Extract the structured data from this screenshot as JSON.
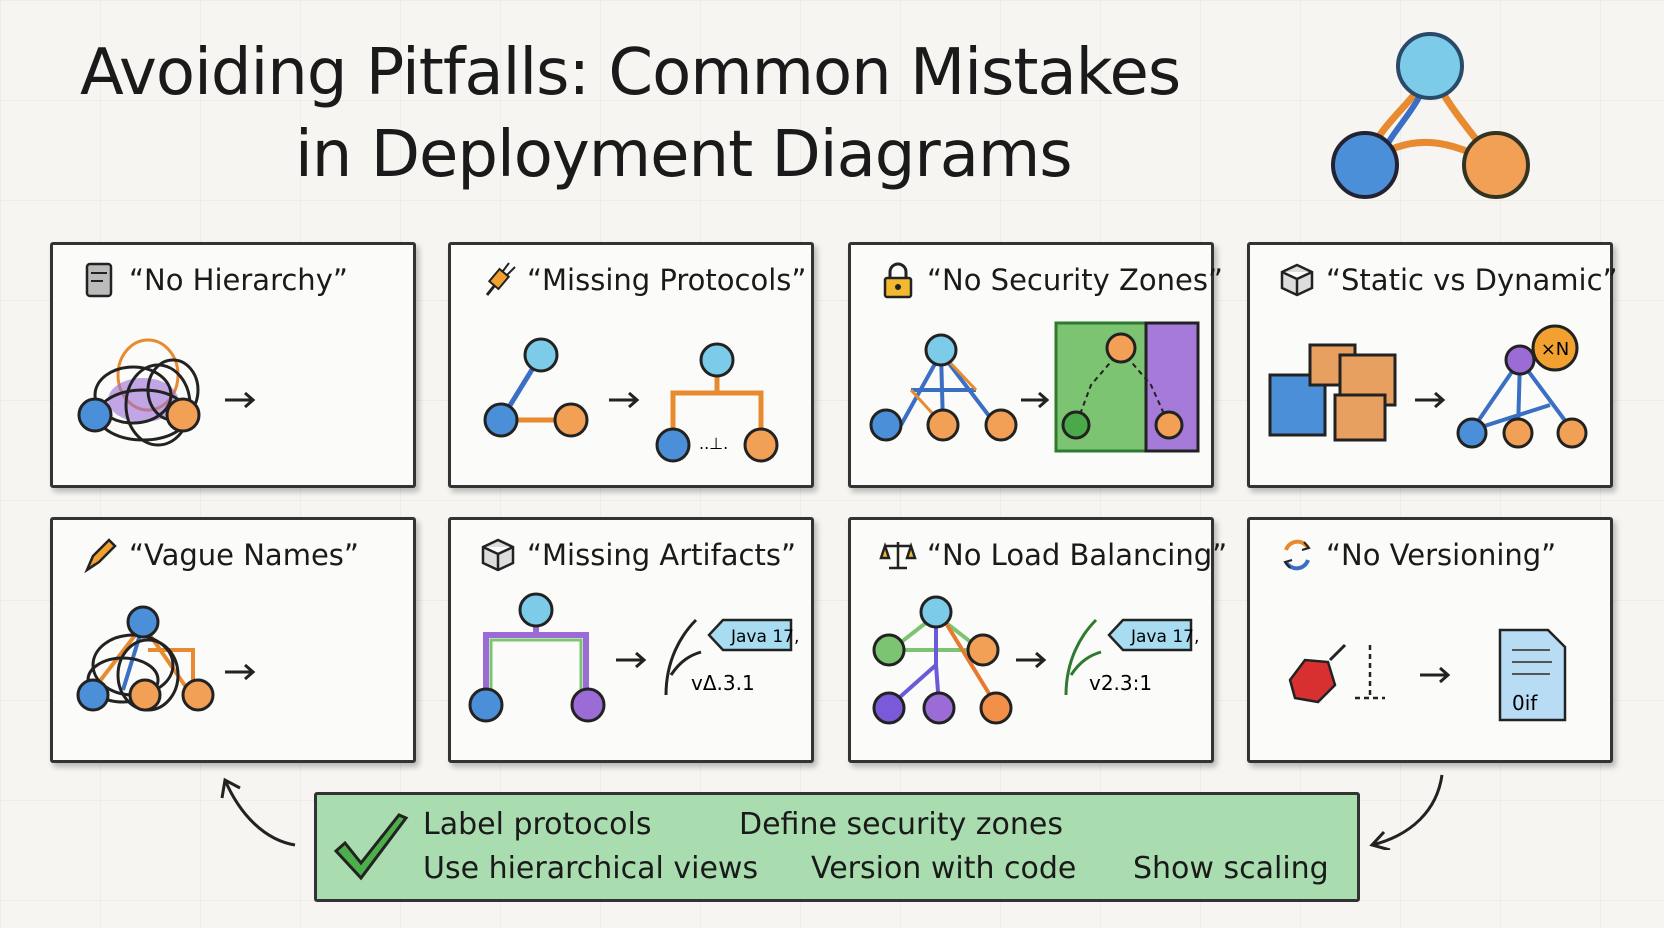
{
  "title": {
    "line1": "Avoiding Pitfalls: Common Mistakes",
    "line2": "in Deployment Diagrams"
  },
  "cards": [
    {
      "label": "“No Hierarchy”",
      "icon": "server-icon"
    },
    {
      "label": "“Missing Protocols”",
      "icon": "plug-icon"
    },
    {
      "label": "“No Security Zones”",
      "icon": "lock-icon"
    },
    {
      "label": "“Static vs Dynamic”",
      "icon": "cube-icon",
      "badge": "×N"
    },
    {
      "label": "“Vague Names”",
      "icon": "pen-icon"
    },
    {
      "label": "“Missing Artifacts”",
      "icon": "cube-icon",
      "tag": "Java 17,",
      "version": "vΔ.3.1"
    },
    {
      "label": "“No Load Balancing”",
      "icon": "scale-icon",
      "tag": "Java 17,",
      "version": "v2.3:1"
    },
    {
      "label": "“No Versioning”",
      "icon": "refresh-icon",
      "doc": "0if"
    }
  ],
  "summary": {
    "items": [
      "Label protocols",
      "Define security zones",
      "Use hierarchical views",
      "Version with code",
      "Show scaling"
    ],
    "icon": "checkmark-icon"
  },
  "colors": {
    "blue": "#4a8fd8",
    "orange": "#f2a055",
    "green": "#7cc472",
    "purple": "#9b6cd6",
    "lightblue": "#7ccbe8",
    "summary_bg": "#a9dcae"
  }
}
